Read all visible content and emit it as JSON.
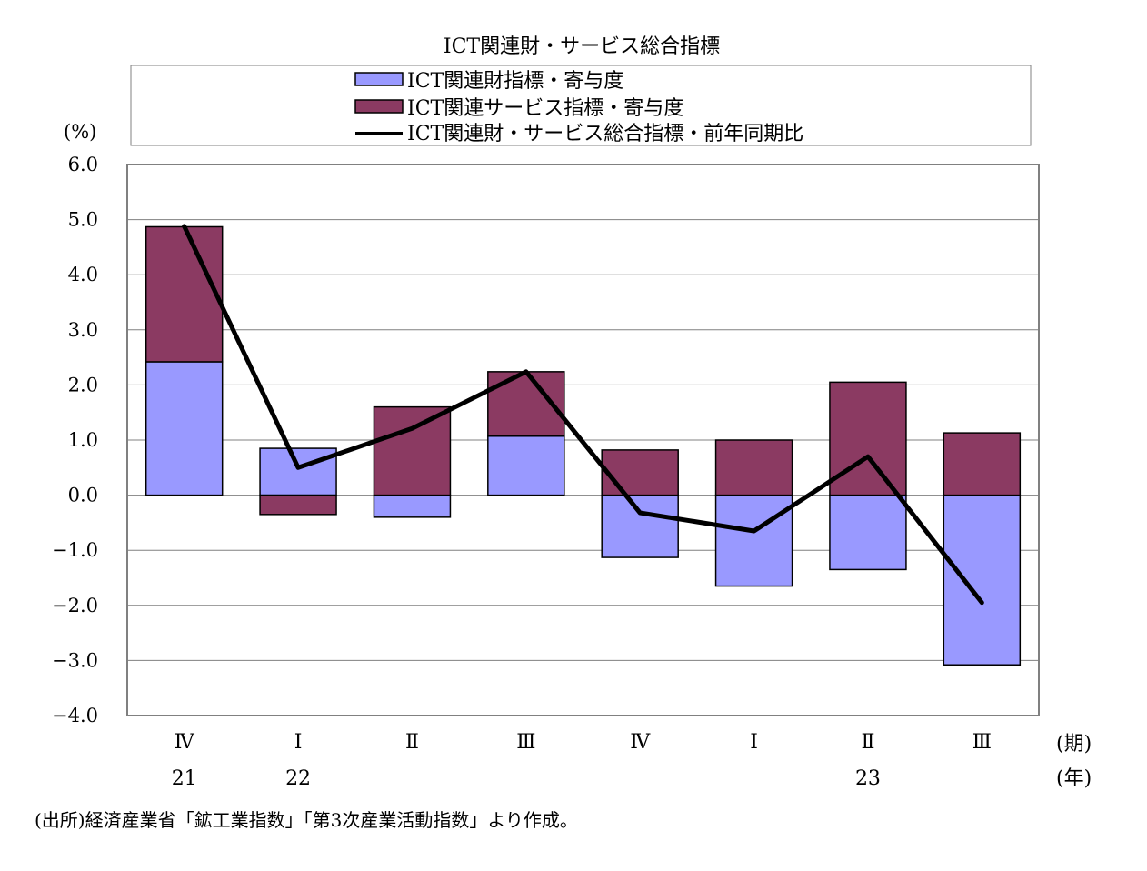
{
  "chart_data": {
    "type": "bar",
    "stacked": true,
    "title": "ICT関連財・サービス総合指標",
    "ylabel": "(%)",
    "xlabel": "(期)",
    "year_axis_label": "(年)",
    "ylim": [
      -4.0,
      6.0
    ],
    "yticks": [
      "6.0",
      "5.0",
      "4.0",
      "3.0",
      "2.0",
      "1.0",
      "0.0",
      "−1.0",
      "−2.0",
      "−3.0",
      "−4.0"
    ],
    "ytick_values": [
      6,
      5,
      4,
      3,
      2,
      1,
      0,
      -1,
      -2,
      -3,
      -4
    ],
    "grid": true,
    "legend_position": "top",
    "categories": [
      "Ⅳ",
      "Ⅰ",
      "Ⅱ",
      "Ⅲ",
      "Ⅳ",
      "Ⅰ",
      "Ⅱ",
      "Ⅲ"
    ],
    "years": [
      "21",
      "22",
      "",
      "",
      "",
      "",
      "23",
      ""
    ],
    "series": [
      {
        "name": "ICT関連財指標・寄与度",
        "kind": "bar",
        "color": "#9999FF",
        "values": [
          2.42,
          0.85,
          -0.4,
          1.07,
          -1.13,
          -1.65,
          -1.35,
          -3.08
        ]
      },
      {
        "name": "ICT関連サービス指標・寄与度",
        "kind": "bar",
        "color": "#8B3A62",
        "values": [
          2.45,
          -0.35,
          1.6,
          1.17,
          0.82,
          1.0,
          2.05,
          1.13
        ]
      },
      {
        "name": "ICT関連財・サービス総合指標・前年同期比",
        "kind": "line",
        "color": "#000000",
        "values": [
          4.88,
          0.5,
          1.21,
          2.24,
          -0.32,
          -0.65,
          0.7,
          -1.95
        ]
      }
    ],
    "source": "(出所)経済産業省「鉱工業指数」「第3次産業活動指数」より作成。"
  }
}
